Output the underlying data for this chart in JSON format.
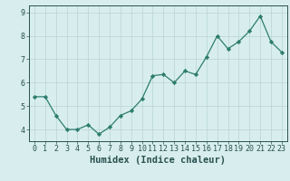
{
  "x": [
    0,
    1,
    2,
    3,
    4,
    5,
    6,
    7,
    8,
    9,
    10,
    11,
    12,
    13,
    14,
    15,
    16,
    17,
    18,
    19,
    20,
    21,
    22,
    23
  ],
  "y": [
    5.4,
    5.4,
    4.6,
    4.0,
    4.0,
    4.2,
    3.8,
    4.1,
    4.6,
    4.8,
    5.3,
    6.3,
    6.35,
    6.0,
    6.5,
    6.35,
    7.1,
    8.0,
    7.45,
    7.75,
    8.2,
    8.85,
    7.75,
    7.3
  ],
  "line_color": "#2e7d6e",
  "marker": "D",
  "marker_size": 2.2,
  "bg_color": "#d8eeee",
  "grid_color": "#b8d4d4",
  "xlabel": "Humidex (Indice chaleur)",
  "ylim": [
    3.5,
    9.3
  ],
  "xlim": [
    -0.5,
    23.5
  ],
  "yticks": [
    4,
    5,
    6,
    7,
    8,
    9
  ],
  "xticks": [
    0,
    1,
    2,
    3,
    4,
    5,
    6,
    7,
    8,
    9,
    10,
    11,
    12,
    13,
    14,
    15,
    16,
    17,
    18,
    19,
    20,
    21,
    22,
    23
  ],
  "tick_color": "#2a5050",
  "xlabel_fontsize": 7.5,
  "tick_fontsize": 6.0,
  "linewidth": 0.9
}
